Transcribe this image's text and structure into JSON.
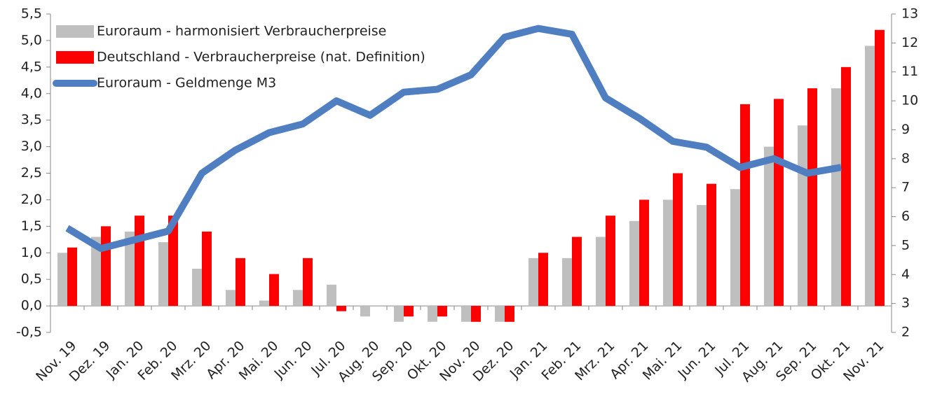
{
  "chart_data": {
    "type": "bar-line",
    "categories": [
      "Nov. 19",
      "Dez. 19",
      "Jan. 20",
      "Feb. 20",
      "Mrz. 20",
      "Apr. 20",
      "Mai. 20",
      "Jun. 20",
      "Jul. 20",
      "Aug. 20",
      "Sep. 20",
      "Okt. 20",
      "Nov. 20",
      "Dez. 20",
      "Jan. 21",
      "Feb. 21",
      "Mrz. 21",
      "Apr. 21",
      "Mai. 21",
      "Jun. 21",
      "Jul. 21",
      "Aug. 21",
      "Sep. 21",
      "Okt. 21",
      "Nov. 21"
    ],
    "series": [
      {
        "name": "Euroraum - harmonisiert Verbraucherpreise",
        "type": "bar",
        "color": "#bfbfbf",
        "values": [
          1.0,
          1.3,
          1.4,
          1.2,
          0.7,
          0.3,
          0.1,
          0.3,
          0.4,
          -0.2,
          -0.3,
          -0.3,
          -0.3,
          -0.3,
          0.9,
          0.9,
          1.3,
          1.6,
          2.0,
          1.9,
          2.2,
          3.0,
          3.4,
          4.1,
          4.9
        ]
      },
      {
        "name": "Deutschland - Verbraucherpreise (nat. Definition)",
        "type": "bar",
        "color": "#ff0000",
        "values": [
          1.1,
          1.5,
          1.7,
          1.7,
          1.4,
          0.9,
          0.6,
          0.9,
          -0.1,
          0.0,
          -0.2,
          -0.2,
          -0.3,
          -0.3,
          1.0,
          1.3,
          1.7,
          2.0,
          2.5,
          2.3,
          3.8,
          3.9,
          4.1,
          4.5,
          5.2
        ]
      },
      {
        "name": "Euroraum - Geldmenge M3",
        "type": "line",
        "axis": "y2",
        "color": "#4f7fc0",
        "values": [
          5.6,
          4.9,
          5.2,
          5.5,
          7.5,
          8.3,
          8.9,
          9.2,
          10.0,
          9.5,
          10.3,
          10.4,
          10.9,
          12.2,
          12.5,
          12.3,
          10.1,
          9.4,
          8.6,
          8.4,
          7.7,
          8.0,
          7.5,
          7.7,
          null
        ]
      }
    ],
    "ylim": [
      -0.5,
      5.5
    ],
    "yticks": [
      {
        "value": -0.5,
        "label": "-0,5"
      },
      {
        "value": 0,
        "label": "0,0"
      },
      {
        "value": 0.5,
        "label": "0,5"
      },
      {
        "value": 1,
        "label": "1,0"
      },
      {
        "value": 1.5,
        "label": "1,5"
      },
      {
        "value": 2,
        "label": "2,0"
      },
      {
        "value": 2.5,
        "label": "2,5"
      },
      {
        "value": 3,
        "label": "3,0"
      },
      {
        "value": 3.5,
        "label": "3,5"
      },
      {
        "value": 4,
        "label": "4,0"
      },
      {
        "value": 4.5,
        "label": "4,5"
      },
      {
        "value": 5,
        "label": "5,0"
      },
      {
        "value": 5.5,
        "label": "5,5"
      }
    ],
    "y2lim": [
      2,
      13
    ],
    "y2ticks": [
      2,
      3,
      4,
      5,
      6,
      7,
      8,
      9,
      10,
      11,
      12,
      13
    ],
    "grid": false,
    "legend": "upper left"
  }
}
